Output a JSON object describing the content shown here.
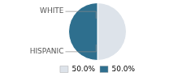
{
  "chart_data": {
    "type": "pie",
    "categories": [
      "WHITE",
      "HISPANIC"
    ],
    "values": [
      50.0,
      50.0
    ],
    "value_labels": [
      "50.0%",
      "50.0%"
    ],
    "colors": [
      "#dde3ea",
      "#2e6f8e"
    ],
    "legend": "bottom"
  }
}
